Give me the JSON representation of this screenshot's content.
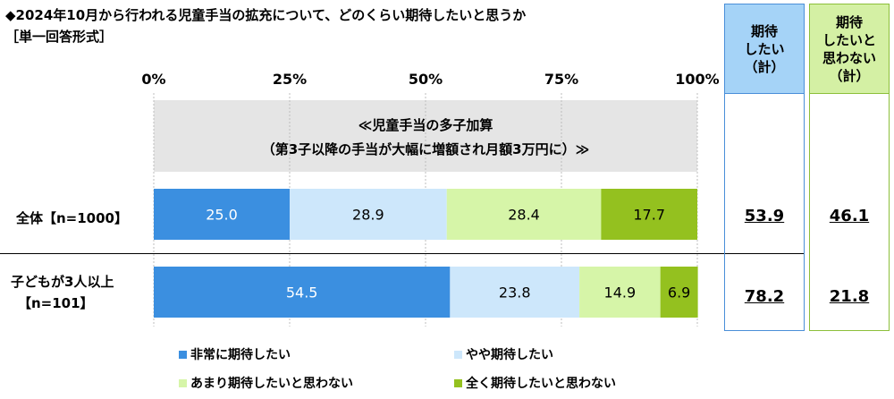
{
  "title": "◆2024年10月から行われる児童手当の拡充について、どのくらい期待したいと思うか",
  "subtitle": "［単一回答形式］",
  "section_label_line1": "≪児童手当の多子加算",
  "section_label_line2": "（第3子以降の手当が大幅に増額され月額3万円に）≫",
  "rows": [
    {
      "label_line1": "全体【n=1000】",
      "label_line2": ""
    },
    {
      "label_line1": "子どもが3人以上",
      "label_line2": "【n=101】"
    }
  ],
  "summary_columns": [
    {
      "header": "期待\nしたい\n（計）",
      "values": [
        "53.9",
        "78.2"
      ]
    },
    {
      "header": "期待\nしたいと\n思わない\n（計）",
      "values": [
        "46.1",
        "21.8"
      ]
    }
  ],
  "colors": {
    "very": "#3b8fe0",
    "somewhat": "#cde7fb",
    "not_much": "#d6f5a8",
    "not_at_all": "#94c11f",
    "section_bg": "#e5e5e5"
  },
  "chart_data": {
    "type": "bar",
    "orientation": "horizontal",
    "stacked": true,
    "title": "◆2024年10月から行われる児童手当の拡充について、どのくらい期待したいと思うか",
    "categories": [
      "全体【n=1000】",
      "子どもが3人以上【n=101】"
    ],
    "series": [
      {
        "name": "非常に期待したい",
        "values": [
          25.0,
          54.5
        ]
      },
      {
        "name": "やや期待したい",
        "values": [
          28.9,
          23.8
        ]
      },
      {
        "name": "あまり期待したいと思わない",
        "values": [
          28.4,
          14.9
        ]
      },
      {
        "name": "全く期待したいと思わない",
        "values": [
          17.7,
          6.9
        ]
      }
    ],
    "xlim": [
      0,
      100
    ],
    "x_ticks": [
      "0%",
      "25%",
      "50%",
      "75%",
      "100%"
    ],
    "legend_position": "bottom",
    "grid": true
  }
}
